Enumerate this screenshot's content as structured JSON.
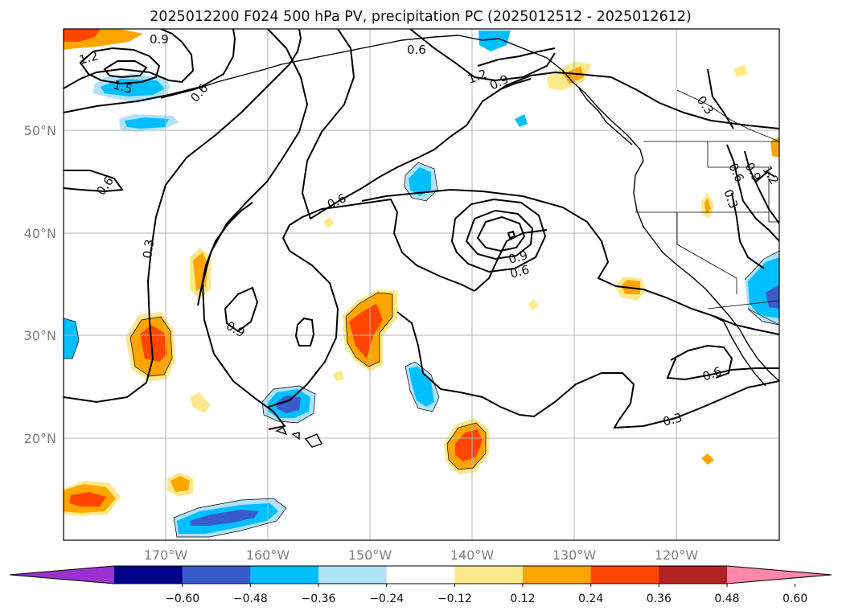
{
  "title": "2025012200 F024 500 hPa PV, precipitation PC (2025012512 - 2025012612)",
  "map": {
    "projection": "PlateCarree",
    "lon_range": [
      -180,
      -110
    ],
    "lat_range": [
      10,
      60
    ],
    "gridlines": true,
    "lat_ticks": [
      {
        "value": 50,
        "label": "50°N"
      },
      {
        "value": 40,
        "label": "40°N"
      },
      {
        "value": 30,
        "label": "30°N"
      },
      {
        "value": 20,
        "label": "20°N"
      }
    ],
    "lon_ticks": [
      {
        "value": -170,
        "label": "170°W"
      },
      {
        "value": -160,
        "label": "160°W"
      },
      {
        "value": -150,
        "label": "150°W"
      },
      {
        "value": -140,
        "label": "140°W"
      },
      {
        "value": -130,
        "label": "130°W"
      },
      {
        "value": -120,
        "label": "120°W"
      }
    ],
    "contour_labels": [
      "0.3",
      "0.6",
      "0.9",
      "1.2",
      "1.5"
    ]
  },
  "colorbar": {
    "extend": "both",
    "colors": [
      "#9b30d0",
      "#00008b",
      "#3a5bcc",
      "#00bfff",
      "#b0e2fa",
      "#ffffff",
      "#fce98c",
      "#ffa500",
      "#ff4500",
      "#b22222",
      "#ff88aa"
    ],
    "tick_labels": [
      "−0.60",
      "−0.48",
      "−0.36",
      "−0.24",
      "−0.12",
      "0.12",
      "0.24",
      "0.36",
      "0.48",
      "0.60"
    ]
  }
}
